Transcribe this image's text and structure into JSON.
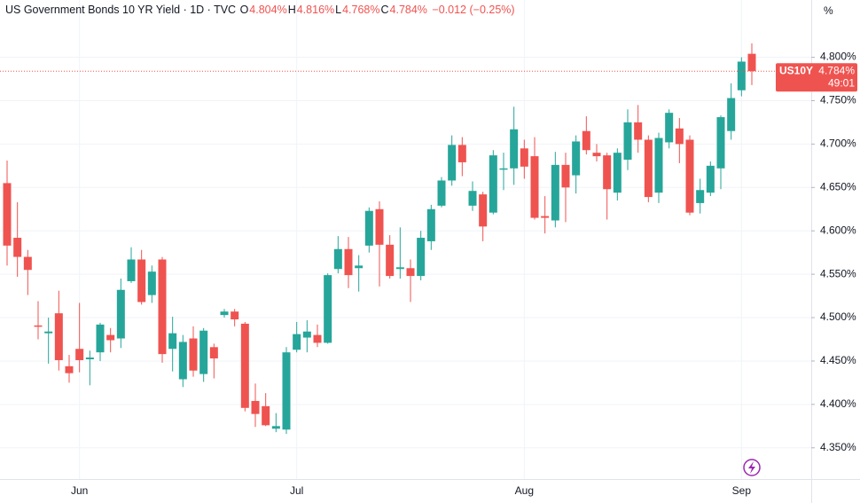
{
  "chart_data": {
    "type": "candlestick",
    "title": "US Government Bonds 10 YR Yield · 1D · TVC",
    "ohlc_legend": [
      {
        "label": "O",
        "value": "4.804%"
      },
      {
        "label": "H",
        "value": "4.816%"
      },
      {
        "label": "L",
        "value": "4.768%"
      },
      {
        "label": "C",
        "value": "4.784%"
      }
    ],
    "change": "−0.012 (−0.25%)",
    "axis_unit": "%",
    "categories": [
      null,
      null,
      null,
      null,
      null,
      null,
      null,
      "Jun",
      null,
      null,
      null,
      null,
      null,
      null,
      null,
      null,
      null,
      null,
      null,
      null,
      null,
      null,
      null,
      null,
      null,
      null,
      null,
      null,
      "Jul",
      null,
      null,
      null,
      null,
      null,
      null,
      null,
      null,
      null,
      null,
      null,
      null,
      null,
      null,
      null,
      null,
      null,
      null,
      null,
      null,
      null,
      "Aug",
      null,
      null,
      null,
      null,
      null,
      null,
      null,
      null,
      null,
      null,
      null,
      null,
      null,
      null,
      null,
      null,
      null,
      null,
      null,
      null,
      "Sep",
      null
    ],
    "open": [
      4.655,
      4.592,
      4.57,
      4.491,
      4.482,
      4.505,
      4.444,
      4.464,
      4.452,
      4.46,
      4.48,
      4.476,
      4.542,
      4.567,
      4.526,
      4.567,
      4.464,
      4.429,
      4.476,
      4.435,
      4.466,
      4.503,
      4.507,
      4.493,
      4.404,
      4.398,
      4.372,
      4.371,
      4.463,
      4.477,
      4.48,
      4.471,
      4.556,
      4.579,
      4.557,
      4.583,
      4.625,
      4.584,
      4.556,
      4.557,
      4.548,
      4.588,
      4.629,
      4.658,
      4.699,
      4.629,
      4.642,
      4.621,
      4.671,
      4.672,
      4.695,
      4.686,
      4.617,
      4.612,
      4.676,
      4.664,
      4.715,
      4.69,
      4.687,
      4.644,
      4.682,
      4.725,
      4.705,
      4.644,
      4.702,
      4.718,
      4.705,
      4.632,
      4.644,
      4.672,
      4.715,
      4.762,
      4.804
    ],
    "high": [
      4.681,
      4.633,
      4.578,
      4.519,
      4.5,
      4.531,
      4.457,
      4.517,
      4.462,
      4.494,
      4.488,
      4.545,
      4.581,
      4.578,
      4.56,
      4.57,
      4.501,
      4.48,
      4.49,
      4.488,
      4.47,
      4.51,
      4.51,
      4.495,
      4.424,
      4.413,
      4.39,
      4.466,
      4.495,
      4.497,
      4.492,
      4.551,
      4.594,
      4.593,
      4.572,
      4.627,
      4.634,
      4.595,
      4.604,
      4.567,
      4.6,
      4.63,
      4.662,
      4.71,
      4.708,
      4.657,
      4.645,
      4.693,
      4.69,
      4.743,
      4.705,
      4.708,
      4.64,
      4.691,
      4.69,
      4.71,
      4.732,
      4.7,
      4.69,
      4.695,
      4.74,
      4.745,
      4.71,
      4.713,
      4.74,
      4.73,
      4.71,
      4.66,
      4.68,
      4.733,
      4.77,
      4.8,
      4.816
    ],
    "low": [
      4.56,
      4.547,
      4.526,
      4.475,
      4.447,
      4.439,
      4.425,
      4.437,
      4.422,
      4.45,
      4.46,
      4.465,
      4.54,
      4.515,
      4.517,
      4.448,
      4.438,
      4.42,
      4.432,
      4.426,
      4.43,
      4.5,
      4.49,
      4.392,
      4.374,
      4.375,
      4.368,
      4.366,
      4.46,
      4.46,
      4.466,
      4.47,
      4.551,
      4.534,
      4.53,
      4.575,
      4.536,
      4.545,
      4.545,
      4.518,
      4.543,
      4.578,
      4.627,
      4.652,
      4.663,
      4.623,
      4.588,
      4.619,
      4.647,
      4.653,
      4.66,
      4.613,
      4.597,
      4.604,
      4.61,
      4.643,
      4.688,
      4.68,
      4.613,
      4.635,
      4.67,
      4.69,
      4.633,
      4.632,
      4.695,
      4.678,
      4.618,
      4.62,
      4.64,
      4.648,
      4.705,
      4.755,
      4.768
    ],
    "close": [
      4.583,
      4.57,
      4.555,
      4.49,
      4.484,
      4.451,
      4.436,
      4.451,
      4.454,
      4.492,
      4.474,
      4.532,
      4.567,
      4.518,
      4.553,
      4.458,
      4.482,
      4.472,
      4.439,
      4.485,
      4.453,
      4.507,
      4.498,
      4.396,
      4.389,
      4.376,
      4.375,
      4.46,
      4.481,
      4.484,
      4.471,
      4.549,
      4.579,
      4.549,
      4.56,
      4.623,
      4.584,
      4.548,
      4.558,
      4.548,
      4.592,
      4.625,
      4.658,
      4.699,
      4.679,
      4.646,
      4.605,
      4.687,
      4.672,
      4.717,
      4.674,
      4.615,
      4.615,
      4.676,
      4.65,
      4.703,
      4.693,
      4.686,
      4.648,
      4.69,
      4.725,
      4.705,
      4.639,
      4.707,
      4.736,
      4.7,
      4.621,
      4.647,
      4.675,
      4.731,
      4.753,
      4.795,
      4.784
    ],
    "up_color": "#26a69a",
    "down_color": "#ef5350",
    "ylim": [
      4.314,
      4.866
    ],
    "yticks": [
      {
        "value": 4.35,
        "label": "4.350%"
      },
      {
        "value": 4.4,
        "label": "4.400%"
      },
      {
        "value": 4.45,
        "label": "4.450%"
      },
      {
        "value": 4.5,
        "label": "4.500%"
      },
      {
        "value": 4.55,
        "label": "4.550%"
      },
      {
        "value": 4.6,
        "label": "4.600%"
      },
      {
        "value": 4.65,
        "label": "4.650%"
      },
      {
        "value": 4.7,
        "label": "4.700%"
      },
      {
        "value": 4.75,
        "label": "4.750%"
      },
      {
        "value": 4.8,
        "label": "4.800%"
      }
    ],
    "grid": true,
    "price_tag": {
      "symbol": "US10Y",
      "value": 4.784,
      "label": "4.784%",
      "countdown": "49:01"
    }
  }
}
